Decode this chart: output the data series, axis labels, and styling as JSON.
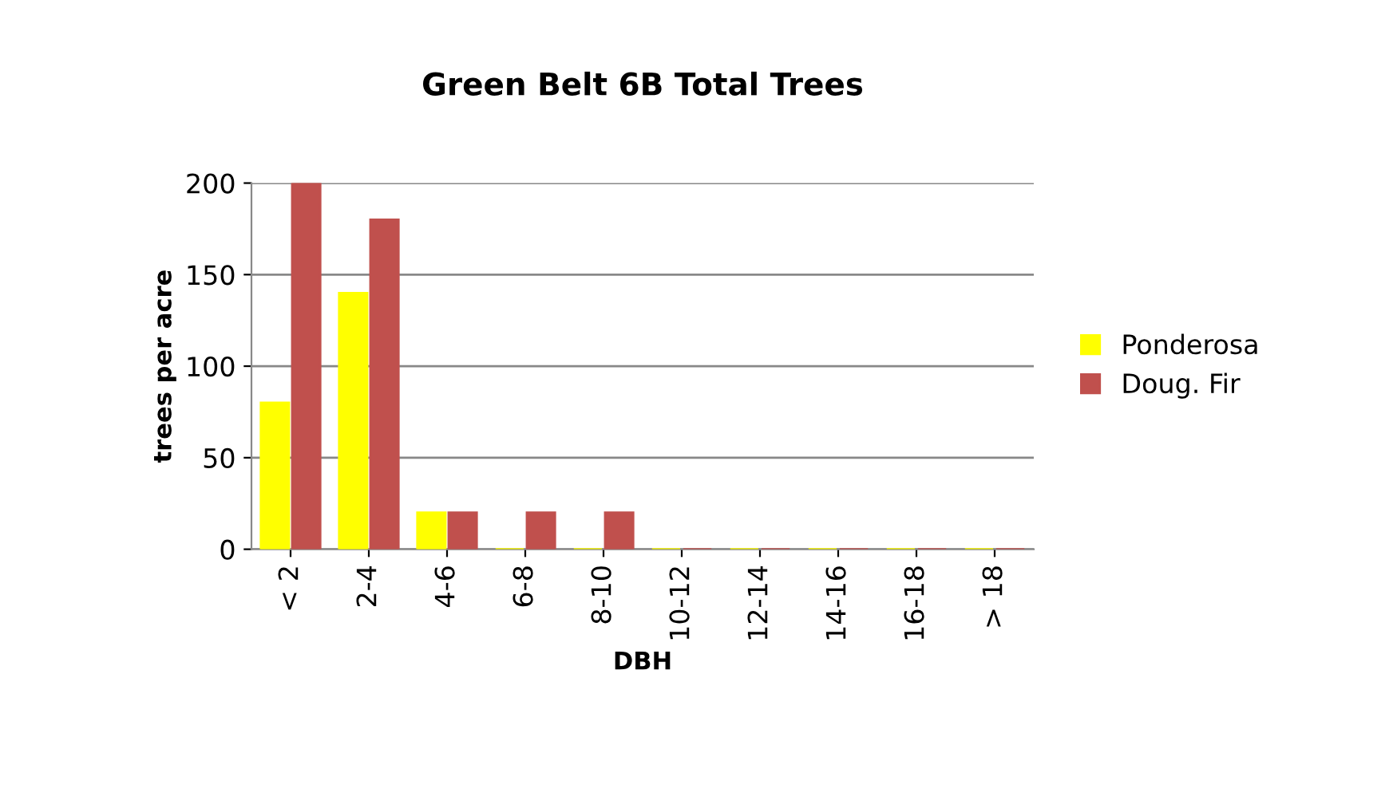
{
  "chart_data": {
    "type": "bar",
    "title": "Green Belt 6B Total Trees",
    "xlabel": "DBH",
    "ylabel": "trees per acre",
    "categories": [
      "< 2",
      "2-4",
      "4-6",
      "6-8",
      "8-10",
      "10-12",
      "12-14",
      "14-16",
      "16-18",
      "> 18"
    ],
    "series": [
      {
        "name": "Ponderosa",
        "color": "#ffff00",
        "values": [
          80,
          140,
          20,
          0,
          0,
          0,
          0,
          0,
          0,
          0
        ]
      },
      {
        "name": "Doug. Fir",
        "color": "#c0504d",
        "values": [
          200,
          180,
          20,
          20,
          20,
          0,
          0,
          0,
          0,
          0
        ]
      }
    ],
    "ylim": [
      0,
      200
    ],
    "yticks": [
      0,
      50,
      100,
      150,
      200
    ],
    "grid": "y",
    "legend": "right"
  }
}
